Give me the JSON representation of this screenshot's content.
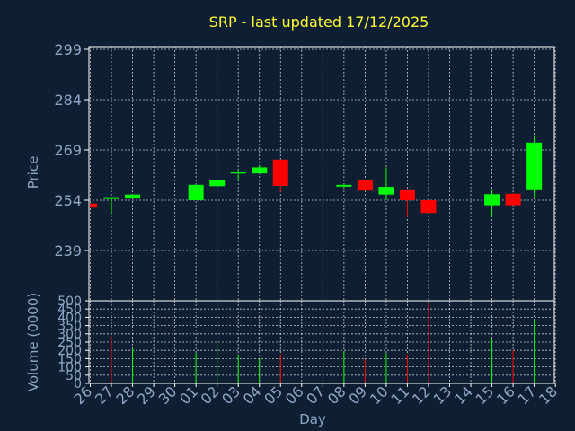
{
  "chart_data": [
    {
      "type": "candlestick",
      "title": "SRP - last updated 17/12/2025",
      "ylabel": "Price",
      "ylim": [
        291,
        299
      ],
      "yticks": [
        299,
        284,
        269,
        254,
        239
      ],
      "categories": [
        "26",
        "27",
        "28",
        "29",
        "30",
        "01",
        "02",
        "03",
        "04",
        "05",
        "06",
        "07",
        "08",
        "09",
        "10",
        "11",
        "12",
        "13",
        "14",
        "15",
        "16",
        "17",
        "18"
      ],
      "candles": [
        {
          "x": "26",
          "open": 253.0,
          "close": 251.8,
          "high": 253.0,
          "low": 251.8
        },
        {
          "x": "27",
          "open": 254.6,
          "close": 254.9,
          "high": 254.9,
          "low": 249.8
        },
        {
          "x": "28",
          "open": 254.5,
          "close": 255.7,
          "high": 255.7,
          "low": 254.5
        },
        {
          "x": "01",
          "open": 254.0,
          "close": 258.6,
          "high": 258.9,
          "low": 254.0
        },
        {
          "x": "02",
          "open": 258.2,
          "close": 260.0,
          "high": 260.0,
          "low": 257.6
        },
        {
          "x": "03",
          "open": 262.2,
          "close": 262.5,
          "high": 263.2,
          "low": 259.8
        },
        {
          "x": "04",
          "open": 262.0,
          "close": 263.8,
          "high": 264.5,
          "low": 262.0
        },
        {
          "x": "05",
          "open": 266.1,
          "close": 258.3,
          "high": 266.1,
          "low": 256.5
        },
        {
          "x": "08",
          "open": 258.2,
          "close": 258.6,
          "high": 258.9,
          "low": 258.2
        },
        {
          "x": "09",
          "open": 259.9,
          "close": 256.9,
          "high": 259.9,
          "low": 256.9
        },
        {
          "x": "10",
          "open": 255.7,
          "close": 258.0,
          "high": 263.8,
          "low": 254.0
        },
        {
          "x": "11",
          "open": 257.0,
          "close": 254.0,
          "high": 257.0,
          "low": 249.0
        },
        {
          "x": "12",
          "open": 254.0,
          "close": 250.2,
          "high": 254.0,
          "low": 250.2
        },
        {
          "x": "15",
          "open": 252.5,
          "close": 255.8,
          "high": 257.0,
          "low": 249.0
        },
        {
          "x": "16",
          "open": 255.9,
          "close": 252.5,
          "high": 256.2,
          "low": 252.5
        },
        {
          "x": "17",
          "open": 257.0,
          "close": 271.2,
          "high": 273.4,
          "low": 254.8
        }
      ],
      "up_color": "#00ff00",
      "down_color": "#ff0000",
      "grid": true
    },
    {
      "type": "bar",
      "xlabel": "Day",
      "ylabel": "Volume (0000)",
      "ylim": [
        0,
        500
      ],
      "yticks": [
        500,
        450,
        400,
        350,
        300,
        250,
        200,
        150,
        100,
        50,
        0
      ],
      "categories": [
        "26",
        "27",
        "28",
        "29",
        "30",
        "01",
        "02",
        "03",
        "04",
        "05",
        "06",
        "07",
        "08",
        "09",
        "10",
        "11",
        "12",
        "13",
        "14",
        "15",
        "16",
        "17",
        "18"
      ],
      "values": [
        {
          "x": "27",
          "value": 285,
          "dir": "down"
        },
        {
          "x": "28",
          "value": 210,
          "dir": "up"
        },
        {
          "x": "01",
          "value": 185,
          "dir": "up"
        },
        {
          "x": "02",
          "value": 250,
          "dir": "up"
        },
        {
          "x": "03",
          "value": 175,
          "dir": "up"
        },
        {
          "x": "04",
          "value": 150,
          "dir": "up"
        },
        {
          "x": "05",
          "value": 175,
          "dir": "down"
        },
        {
          "x": "08",
          "value": 195,
          "dir": "up"
        },
        {
          "x": "09",
          "value": 145,
          "dir": "down"
        },
        {
          "x": "10",
          "value": 185,
          "dir": "up"
        },
        {
          "x": "11",
          "value": 175,
          "dir": "down"
        },
        {
          "x": "12",
          "value": 490,
          "dir": "down"
        },
        {
          "x": "15",
          "value": 270,
          "dir": "up"
        },
        {
          "x": "16",
          "value": 200,
          "dir": "down"
        },
        {
          "x": "17",
          "value": 385,
          "dir": "up"
        }
      ],
      "grid": true
    }
  ],
  "colors": {
    "background": "#0f1f33",
    "frame": "#ffffff",
    "text": "#8fa7c6",
    "title": "#ffff33",
    "up": "#00ff00",
    "down": "#ff0000"
  }
}
